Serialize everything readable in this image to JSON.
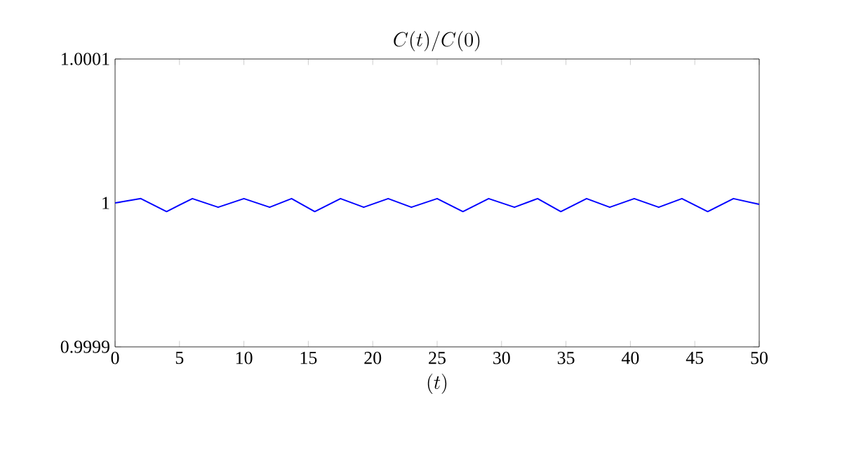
{
  "chart_data": {
    "type": "line",
    "title": "C(t)/C(0)",
    "xlabel": "(t)",
    "x": [
      0,
      2,
      4,
      6,
      8,
      10,
      12,
      13.7,
      15.5,
      17.5,
      19.3,
      21.2,
      23,
      25,
      27,
      29,
      31,
      32.8,
      34.6,
      36.6,
      38.4,
      40.3,
      42.2,
      44,
      46,
      48,
      50
    ],
    "series": [
      {
        "color": "#0000ff",
        "values": [
          1.0,
          1.000003,
          0.999994,
          1.000003,
          0.999997,
          1.000003,
          0.999997,
          1.000003,
          0.999994,
          1.000003,
          0.999997,
          1.000003,
          0.999997,
          1.000003,
          0.999994,
          1.000003,
          0.999997,
          1.000003,
          0.999994,
          1.000003,
          0.999997,
          1.000003,
          0.999997,
          1.000003,
          0.999994,
          1.000003,
          0.999999
        ]
      }
    ],
    "xlim": [
      0,
      50
    ],
    "ylim": [
      0.9999,
      1.0001
    ],
    "xticks": [
      0,
      5,
      10,
      15,
      20,
      25,
      30,
      35,
      40,
      45,
      50
    ],
    "yticks": [
      0.9999,
      1,
      1.0001
    ],
    "marker": "none",
    "line_style": "solid"
  }
}
